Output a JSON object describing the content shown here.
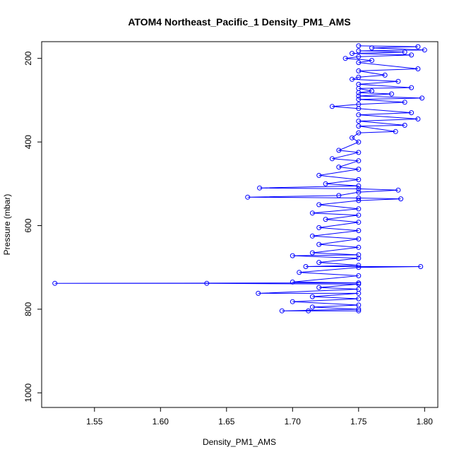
{
  "chart_data": {
    "type": "scatter",
    "title": "ATOM4 Northeast_Pacific_1 Density_PM1_AMS",
    "xlabel": "Density_PM1_AMS",
    "ylabel": "Pressure (mbar)",
    "xlim": [
      1.51,
      1.81
    ],
    "ylim": [
      1035,
      160
    ],
    "y_reversed": true,
    "x_ticks": [
      1.55,
      1.6,
      1.65,
      1.7,
      1.75,
      1.8
    ],
    "x_tick_labels": [
      "1.55",
      "1.60",
      "1.65",
      "1.70",
      "1.75",
      "1.80"
    ],
    "y_ticks": [
      200,
      400,
      600,
      800,
      1000
    ],
    "y_tick_labels": [
      "200",
      "400",
      "600",
      "800",
      "1000"
    ],
    "series_color": "#0000ff",
    "marker": "open-circle",
    "connected_by_lines": true,
    "grid": false,
    "legend": "none",
    "series": [
      {
        "points": [
          [
            1.75,
            170
          ],
          [
            1.795,
            172
          ],
          [
            1.76,
            175
          ],
          [
            1.8,
            180
          ],
          [
            1.75,
            182
          ],
          [
            1.785,
            185
          ],
          [
            1.745,
            188
          ],
          [
            1.79,
            192
          ],
          [
            1.75,
            196
          ],
          [
            1.74,
            200
          ],
          [
            1.76,
            205
          ],
          [
            1.75,
            210
          ],
          [
            1.795,
            225
          ],
          [
            1.75,
            230
          ],
          [
            1.77,
            240
          ],
          [
            1.75,
            245
          ],
          [
            1.745,
            250
          ],
          [
            1.78,
            255
          ],
          [
            1.75,
            262
          ],
          [
            1.79,
            270
          ],
          [
            1.75,
            272
          ],
          [
            1.76,
            278
          ],
          [
            1.75,
            282
          ],
          [
            1.775,
            285
          ],
          [
            1.75,
            290
          ],
          [
            1.798,
            295
          ],
          [
            1.75,
            298
          ],
          [
            1.785,
            305
          ],
          [
            1.75,
            310
          ],
          [
            1.73,
            315
          ],
          [
            1.75,
            320
          ],
          [
            1.79,
            330
          ],
          [
            1.75,
            335
          ],
          [
            1.795,
            345
          ],
          [
            1.75,
            350
          ],
          [
            1.785,
            360
          ],
          [
            1.75,
            362
          ],
          [
            1.778,
            375
          ],
          [
            1.75,
            378
          ],
          [
            1.745,
            390
          ],
          [
            1.75,
            400
          ],
          [
            1.735,
            420
          ],
          [
            1.75,
            425
          ],
          [
            1.73,
            440
          ],
          [
            1.75,
            445
          ],
          [
            1.735,
            460
          ],
          [
            1.75,
            465
          ],
          [
            1.72,
            480
          ],
          [
            1.75,
            490
          ],
          [
            1.725,
            500
          ],
          [
            1.75,
            505
          ],
          [
            1.675,
            510
          ],
          [
            1.75,
            512
          ],
          [
            1.78,
            515
          ],
          [
            1.75,
            520
          ],
          [
            1.735,
            528
          ],
          [
            1.666,
            532
          ],
          [
            1.75,
            534
          ],
          [
            1.782,
            536
          ],
          [
            1.75,
            540
          ],
          [
            1.72,
            550
          ],
          [
            1.75,
            560
          ],
          [
            1.715,
            570
          ],
          [
            1.75,
            575
          ],
          [
            1.725,
            585
          ],
          [
            1.75,
            592
          ],
          [
            1.72,
            605
          ],
          [
            1.75,
            612
          ],
          [
            1.715,
            625
          ],
          [
            1.75,
            632
          ],
          [
            1.72,
            645
          ],
          [
            1.75,
            652
          ],
          [
            1.715,
            665
          ],
          [
            1.75,
            670
          ],
          [
            1.7,
            672
          ],
          [
            1.75,
            678
          ],
          [
            1.72,
            688
          ],
          [
            1.75,
            695
          ],
          [
            1.71,
            698
          ],
          [
            1.797,
            698
          ],
          [
            1.75,
            700
          ],
          [
            1.705,
            712
          ],
          [
            1.75,
            720
          ],
          [
            1.7,
            735
          ],
          [
            1.75,
            737
          ],
          [
            1.52,
            738
          ],
          [
            1.635,
            738
          ],
          [
            1.75,
            740
          ],
          [
            1.72,
            748
          ],
          [
            1.75,
            752
          ],
          [
            1.674,
            762
          ],
          [
            1.75,
            762
          ],
          [
            1.715,
            770
          ],
          [
            1.75,
            775
          ],
          [
            1.7,
            782
          ],
          [
            1.75,
            790
          ],
          [
            1.715,
            795
          ],
          [
            1.75,
            800
          ],
          [
            1.692,
            804
          ],
          [
            1.712,
            804
          ],
          [
            1.75,
            804
          ]
        ]
      }
    ]
  }
}
